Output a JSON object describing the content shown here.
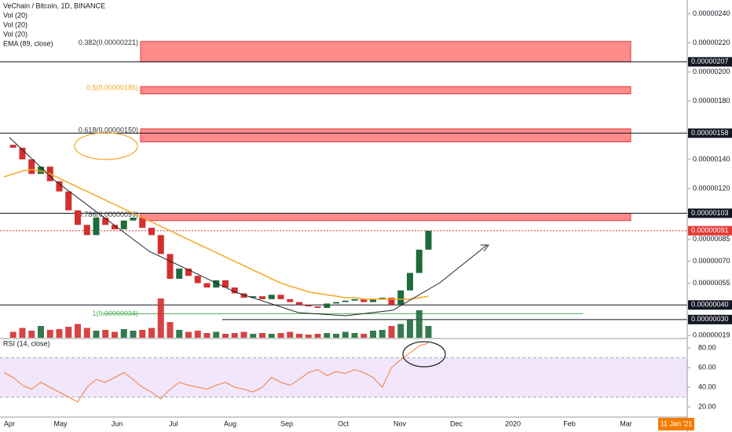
{
  "chart_data": {
    "type": "candle-line",
    "title": "VeChain / Bitcoin, 1D, BINANCE",
    "indicators": [
      "Vol (20)",
      "Vol (20)",
      "Vol (20)",
      "EMA (89, close)"
    ],
    "ylim": [
      1.75e-07,
      2.5e-06
    ],
    "yticks": [
      {
        "value": 2.4e-06,
        "label": "0.00000240"
      },
      {
        "value": 2.2e-06,
        "label": "0.00000220"
      },
      {
        "value": 2e-06,
        "label": "0.00000200"
      },
      {
        "value": 1.8e-06,
        "label": "0.00000180"
      },
      {
        "value": 1.4e-06,
        "label": "0.00000140"
      },
      {
        "value": 1.2e-06,
        "label": "0.00000120"
      },
      {
        "value": 8.5e-07,
        "label": "0.00000085"
      },
      {
        "value": 7e-07,
        "label": "0.00000070"
      },
      {
        "value": 5.5e-07,
        "label": "0.00000055"
      },
      {
        "value": 1.9e-07,
        "label": "0.00000019"
      }
    ],
    "x_labels": [
      "Apr",
      "May",
      "Jun",
      "Jul",
      "Aug",
      "Sep",
      "Oct",
      "Nov",
      "Dec",
      "2020",
      "Feb",
      "Mar"
    ],
    "date_label": "11 Jan '21",
    "up_color": "#1e6b3c",
    "down_color": "#d32f2f",
    "series": [
      {
        "name": "Price",
        "values": [
          1.5e-06,
          1.48e-06,
          1.4e-06,
          1.3e-06,
          1.35e-06,
          1.25e-06,
          1.18e-06,
          1.05e-06,
          9.5e-07,
          8.8e-07,
          1e-06,
          9.5e-07,
          9.2e-07,
          9.8e-07,
          1e-06,
          9.3e-07,
          8.8e-07,
          7.5e-07,
          5.8e-07,
          6.5e-07,
          6e-07,
          5.5e-07,
          5.2e-07,
          5.7e-07,
          5.2e-07,
          4.8e-07,
          4.5e-07,
          4.6e-07,
          4.4e-07,
          4.7e-07,
          4.4e-07,
          4.2e-07,
          4e-07,
          3.9e-07,
          3.8e-07,
          4.1e-07,
          4.2e-07,
          4.3e-07,
          4.4e-07,
          4.2e-07,
          4.4e-07,
          4.5e-07,
          4e-07,
          5e-07,
          6.2e-07,
          7.8e-07,
          9.1e-07
        ]
      },
      {
        "name": "EMA (89, close)",
        "color": "#f5a623",
        "values": [
          1.28e-06,
          1.3e-06,
          1.32e-06,
          1.33e-06,
          1.32e-06,
          1.3e-06,
          1.27e-06,
          1.24e-06,
          1.21e-06,
          1.18e-06,
          1.15e-06,
          1.12e-06,
          1.09e-06,
          1.06e-06,
          1.03e-06,
          1e-06,
          9.7e-07,
          9.4e-07,
          9.1e-07,
          8.8e-07,
          8.5e-07,
          8.2e-07,
          7.9e-07,
          7.6e-07,
          7.3e-07,
          7e-07,
          6.7e-07,
          6.4e-07,
          6.1e-07,
          5.8e-07,
          5.5e-07,
          5.3e-07,
          5.1e-07,
          4.9e-07,
          4.8e-07,
          4.7e-07,
          4.6e-07,
          4.5e-07,
          4.5e-07,
          4.4e-07,
          4.4e-07,
          4.4e-07,
          4.4e-07,
          4.4e-07,
          4.4e-07,
          4.5e-07,
          4.6e-07
        ]
      }
    ],
    "volume": {
      "ylim": [
        0,
        100
      ],
      "values": [
        20,
        15,
        25,
        18,
        30,
        20,
        22,
        28,
        35,
        25,
        18,
        20,
        15,
        22,
        18,
        20,
        25,
        100,
        40,
        20,
        15,
        18,
        12,
        15,
        10,
        12,
        15,
        10,
        12,
        10,
        12,
        15,
        10,
        8,
        10,
        12,
        10,
        15,
        12,
        10,
        18,
        20,
        30,
        35,
        45,
        70,
        30
      ]
    },
    "fib_levels": [
      {
        "label": "0.382(0.00000221)",
        "zone": [
          2.21e-06,
          2.07e-06
        ],
        "color": "#333333"
      },
      {
        "label": "0.5(0.00000185)",
        "zone": [
          1.9e-06,
          1.85e-06
        ],
        "color": "#f5a623"
      },
      {
        "label": "0.618(0.00000150)",
        "zone": [
          1.61e-06,
          1.52e-06
        ],
        "color": "#333333"
      },
      {
        "label": "0.786(0.00000099)",
        "zone": [
          1.03e-06,
          9.8e-07
        ],
        "color": "#333333"
      }
    ],
    "fib_base": {
      "label": "1(0.00000034)",
      "value": 3.4e-07
    },
    "price_labels": [
      {
        "value": 2.07e-06,
        "label": "0.00000207",
        "color": "#131722"
      },
      {
        "value": 1.58e-06,
        "label": "0.00000158",
        "color": "#131722"
      },
      {
        "value": 1.03e-06,
        "label": "0.00000103",
        "color": "#131722"
      },
      {
        "value": 9.1e-07,
        "label": "0.00000091",
        "color": "#e53935"
      },
      {
        "value": 4e-07,
        "label": "0.00000040",
        "color": "#131722"
      },
      {
        "value": 3e-07,
        "label": "0.00000030",
        "color": "#131722"
      }
    ],
    "rsi": {
      "title": "RSI (14, close)",
      "color": "#f57c3a",
      "ylim": [
        10,
        90
      ],
      "band": [
        30,
        70
      ],
      "yticks": [
        {
          "value": 80,
          "label": "80.00"
        },
        {
          "value": 60,
          "label": "60.00"
        },
        {
          "value": 40,
          "label": "40.00"
        },
        {
          "value": 20,
          "label": "20.00"
        }
      ],
      "values": [
        55,
        50,
        42,
        38,
        45,
        40,
        35,
        30,
        25,
        40,
        48,
        45,
        50,
        55,
        48,
        40,
        35,
        28,
        38,
        45,
        42,
        40,
        38,
        42,
        45,
        40,
        38,
        35,
        40,
        50,
        45,
        42,
        48,
        55,
        58,
        52,
        56,
        54,
        58,
        55,
        50,
        40,
        60,
        68,
        75,
        82,
        85
      ]
    }
  }
}
